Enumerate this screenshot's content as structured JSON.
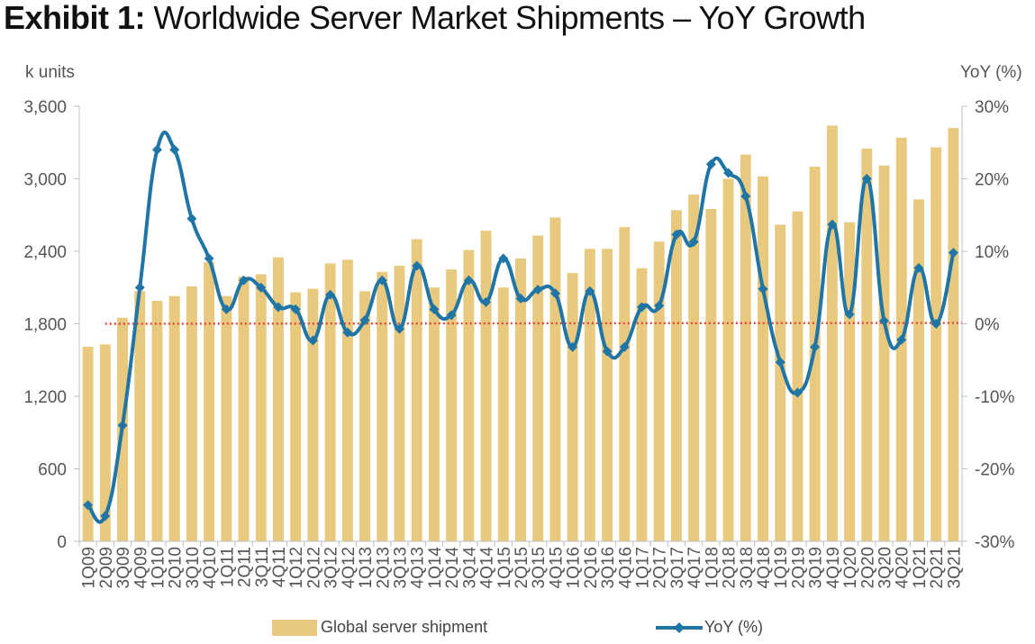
{
  "title": {
    "prefix": "Exhibit 1:",
    "text": "Worldwide Server Market Shipments – YoY Growth"
  },
  "left_unit": "k units",
  "right_unit": "YoY (%)",
  "colors": {
    "bar": "#e8c97d",
    "line": "#1f75a6",
    "zero_line": "#e0463c",
    "axis": "#bfbfbf",
    "text": "#555555"
  },
  "chart_data": {
    "type": "bar",
    "title": "Worldwide Server Market Shipments – YoY Growth",
    "categories": [
      "1Q09",
      "2Q09",
      "3Q09",
      "4Q09",
      "1Q10",
      "2Q10",
      "3Q10",
      "4Q10",
      "1Q11",
      "2Q11",
      "3Q11",
      "4Q11",
      "1Q12",
      "2Q12",
      "3Q12",
      "4Q12",
      "1Q13",
      "2Q13",
      "3Q13",
      "4Q13",
      "1Q14",
      "2Q14",
      "3Q14",
      "4Q14",
      "1Q15",
      "2Q15",
      "3Q15",
      "4Q15",
      "1Q16",
      "2Q16",
      "3Q16",
      "4Q16",
      "1Q17",
      "2Q17",
      "3Q17",
      "4Q17",
      "1Q18",
      "2Q18",
      "3Q18",
      "4Q18",
      "1Q19",
      "2Q19",
      "3Q19",
      "4Q19",
      "1Q20",
      "2Q20",
      "3Q20",
      "4Q20",
      "1Q21",
      "2Q21",
      "3Q21"
    ],
    "series": [
      {
        "name": "Global server shipment",
        "axis": "left",
        "type": "bar",
        "values": [
          1610,
          1630,
          1850,
          2070,
          1990,
          2030,
          2110,
          2310,
          2030,
          2190,
          2210,
          2350,
          2060,
          2090,
          2300,
          2330,
          2070,
          2230,
          2280,
          2500,
          2100,
          2250,
          2410,
          2570,
          2100,
          2340,
          2530,
          2680,
          2220,
          2420,
          2420,
          2600,
          2260,
          2480,
          2740,
          2870,
          2750,
          3000,
          3200,
          3020,
          2620,
          2730,
          3100,
          3440,
          2640,
          3250,
          3110,
          3340,
          2830,
          3260,
          3420
        ]
      },
      {
        "name": "YoY (%)",
        "axis": "right",
        "type": "line",
        "values": [
          -25,
          -26.5,
          -14,
          5,
          24,
          24,
          14.5,
          9,
          2,
          6,
          5,
          2.3,
          2,
          -2.3,
          4,
          -1.2,
          0.5,
          6,
          -0.7,
          8,
          2,
          1.2,
          6,
          3,
          9,
          3.5,
          4.7,
          4.2,
          -3.2,
          4.5,
          -3.8,
          -3.2,
          2.3,
          2.5,
          12.3,
          11.3,
          22,
          20.8,
          17.6,
          4.8,
          -5.3,
          -9.5,
          -3.2,
          13.7,
          1.3,
          20,
          0.4,
          -2.2,
          7.7,
          0,
          9.8
        ]
      }
    ],
    "y_left": {
      "label": "k units",
      "ylim": [
        0,
        3600
      ],
      "ticks": [
        "0",
        "600",
        "1,200",
        "1,800",
        "2,400",
        "3,000",
        "3,600"
      ],
      "tick_values": [
        0,
        600,
        1200,
        1800,
        2400,
        3000,
        3600
      ]
    },
    "y_right": {
      "label": "YoY (%)",
      "ylim": [
        -30,
        30
      ],
      "ticks": [
        "-30%",
        "-20%",
        "-10%",
        "0%",
        "10%",
        "20%",
        "30%"
      ],
      "tick_values": [
        -30,
        -20,
        -10,
        0,
        10,
        20,
        30
      ]
    },
    "reference_line": {
      "axis": "right",
      "value": 0,
      "style": "dotted"
    },
    "legend": [
      "Global server shipment",
      "YoY (%)"
    ]
  }
}
